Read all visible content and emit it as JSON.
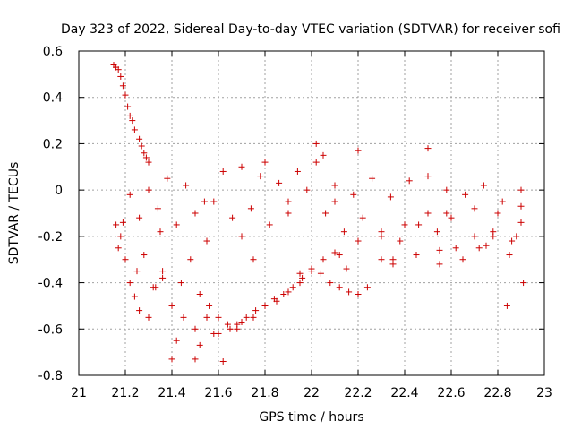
{
  "chart_data": {
    "type": "scatter",
    "title": "Day 323 of 2022, Sidereal Day-to-day VTEC variation (SDTVAR) for receiver sofi",
    "xlabel": "GPS time / hours",
    "ylabel": "SDTVAR / TECUs",
    "xlim": [
      21,
      23
    ],
    "ylim": [
      -0.8,
      0.6
    ],
    "x_ticks": [
      "21",
      "21.2",
      "21.4",
      "21.6",
      "21.8",
      "22",
      "22.2",
      "22.4",
      "22.6",
      "22.8",
      "23"
    ],
    "y_ticks": [
      "0.6",
      "0.4",
      "0.2",
      "0",
      "-0.2",
      "-0.4",
      "-0.6",
      "-0.8"
    ],
    "grid": true,
    "marker": "plus",
    "color": "#cc0000",
    "series": [
      {
        "name": "SDTVAR",
        "x": [
          21.15,
          21.16,
          21.17,
          21.18,
          21.19,
          21.2,
          21.21,
          21.22,
          21.23,
          21.24,
          21.26,
          21.27,
          21.28,
          21.29,
          21.3,
          21.22,
          21.24,
          21.26,
          21.3,
          21.33,
          21.36,
          21.4,
          21.45,
          21.5,
          21.55,
          21.6,
          21.65,
          21.7,
          21.75,
          21.8,
          21.85,
          21.9,
          21.95,
          22.0,
          22.05,
          22.1,
          22.2,
          22.3,
          22.4,
          22.5,
          22.6,
          22.7,
          22.8,
          22.9,
          21.16,
          21.22,
          21.3,
          21.38,
          21.46,
          21.54,
          21.62,
          21.7,
          21.78,
          21.86,
          21.94,
          22.02,
          22.1,
          22.18,
          22.26,
          22.34,
          22.42,
          22.5,
          22.58,
          22.66,
          22.74,
          22.82,
          22.9,
          21.18,
          21.26,
          21.34,
          21.42,
          21.5,
          21.58,
          21.66,
          21.74,
          21.82,
          21.9,
          21.98,
          22.06,
          22.14,
          22.22,
          22.3,
          22.38,
          22.46,
          22.54,
          22.62,
          22.7,
          22.78,
          22.86,
          21.2,
          21.28,
          21.36,
          21.44,
          21.52,
          21.56,
          21.6,
          21.64,
          21.68,
          21.72,
          21.76,
          21.8,
          21.84,
          21.88,
          21.92,
          21.96,
          22.0,
          22.04,
          22.08,
          22.12,
          22.16,
          22.2,
          22.24,
          21.4,
          21.42,
          21.5,
          21.52,
          21.58,
          21.62,
          22.2,
          22.5,
          22.02,
          22.05,
          21.68,
          21.8,
          22.1,
          22.3,
          22.45,
          22.55,
          22.65,
          22.75,
          22.85,
          22.88,
          21.17,
          21.25,
          21.32,
          21.48,
          21.7,
          21.9,
          22.12,
          22.35,
          22.55,
          22.72,
          22.84,
          22.91,
          21.19,
          21.35,
          21.55,
          21.75,
          21.95,
          22.15,
          22.35,
          22.58,
          22.78,
          22.9
        ],
        "y": [
          0.54,
          0.53,
          0.52,
          0.49,
          0.45,
          0.41,
          0.36,
          0.32,
          0.3,
          0.26,
          0.22,
          0.19,
          0.16,
          0.14,
          0.12,
          -0.4,
          -0.46,
          -0.52,
          -0.55,
          -0.42,
          -0.38,
          -0.5,
          -0.55,
          -0.6,
          -0.55,
          -0.62,
          -0.6,
          -0.57,
          -0.55,
          -0.5,
          -0.48,
          -0.44,
          -0.4,
          -0.35,
          -0.3,
          -0.27,
          -0.22,
          -0.18,
          -0.15,
          -0.1,
          -0.12,
          -0.08,
          -0.1,
          -0.07,
          -0.15,
          -0.02,
          0.0,
          0.05,
          0.02,
          -0.05,
          0.08,
          0.1,
          0.06,
          0.03,
          0.08,
          0.12,
          0.02,
          -0.02,
          0.05,
          -0.03,
          0.04,
          0.06,
          0.0,
          -0.02,
          0.02,
          -0.05,
          0.0,
          -0.2,
          -0.12,
          -0.08,
          -0.15,
          -0.1,
          -0.05,
          -0.12,
          -0.08,
          -0.15,
          -0.05,
          0.0,
          -0.1,
          -0.18,
          -0.12,
          -0.2,
          -0.22,
          -0.15,
          -0.18,
          -0.25,
          -0.2,
          -0.18,
          -0.22,
          -0.3,
          -0.28,
          -0.35,
          -0.4,
          -0.45,
          -0.5,
          -0.55,
          -0.58,
          -0.6,
          -0.55,
          -0.52,
          -0.5,
          -0.47,
          -0.45,
          -0.42,
          -0.38,
          -0.34,
          -0.36,
          -0.4,
          -0.42,
          -0.44,
          -0.45,
          -0.42,
          -0.73,
          -0.65,
          -0.73,
          -0.67,
          -0.62,
          -0.74,
          0.17,
          0.18,
          0.2,
          0.15,
          -0.58,
          0.12,
          -0.05,
          -0.3,
          -0.28,
          -0.26,
          -0.3,
          -0.24,
          -0.28,
          -0.2,
          -0.25,
          -0.35,
          -0.42,
          -0.3,
          -0.2,
          -0.1,
          -0.28,
          -0.3,
          -0.32,
          -0.25,
          -0.5,
          -0.4,
          -0.14,
          -0.18,
          -0.22,
          -0.3,
          -0.36,
          -0.34,
          -0.32,
          -0.1,
          -0.2,
          -0.14
        ]
      }
    ]
  }
}
